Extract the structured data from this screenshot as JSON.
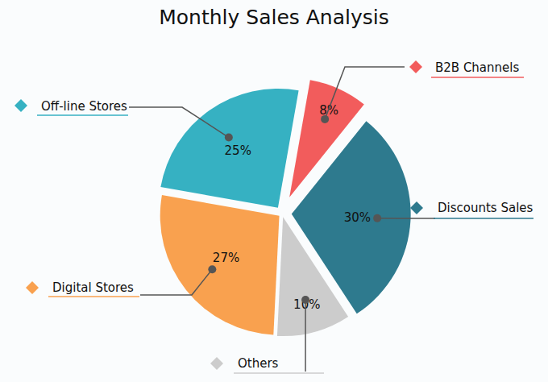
{
  "chart_data": {
    "type": "pie",
    "title": "Monthly Sales Analysis",
    "categories": [
      "B2B Channels",
      "Discounts Sales",
      "Others",
      "Digital Stores",
      "Off-line Stores"
    ],
    "values": [
      8,
      30,
      10,
      27,
      25
    ],
    "value_labels": [
      "8%",
      "30%",
      "10%",
      "27%",
      "25%"
    ],
    "colors": [
      "#f25c5c",
      "#2e7a8e",
      "#cccccc",
      "#f9a14f",
      "#36b1c2"
    ],
    "data_labels": true
  }
}
